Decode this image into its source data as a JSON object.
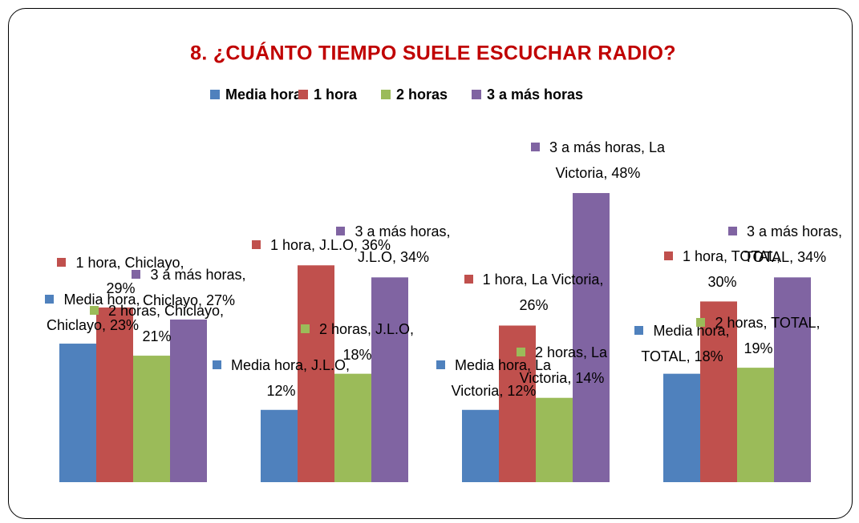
{
  "chart_data": {
    "type": "bar",
    "title": "8. ¿CUÁNTO TIEMPO SUELE ESCUCHAR RADIO?",
    "categories": [
      "Chiclayo",
      "J.L.O",
      "La Victoria",
      "TOTAL"
    ],
    "ylim": [
      0,
      50
    ],
    "legend": "top",
    "series": [
      {
        "name": "Media hora",
        "color": "#4f81bd",
        "values": [
          23,
          12,
          12,
          18
        ],
        "value_labels": [
          "Media hora, Chiclayo, 23%",
          "Media hora, J.L.O, 12%",
          "Media hora, La Victoria, 12%",
          "Media hora, TOTAL, 18%"
        ]
      },
      {
        "name": "1 hora",
        "color": "#c0504d",
        "values": [
          29,
          36,
          26,
          30
        ],
        "value_labels": [
          "1 hora, Chiclayo, 29%",
          "1 hora, J.L.O, 36%",
          "1 hora, La Victoria, 26%",
          "1 hora, TOTAL, 30%"
        ]
      },
      {
        "name": "2 horas",
        "color": "#9bbb59",
        "values": [
          21,
          18,
          14,
          19
        ],
        "value_labels": [
          "2 horas, Chiclayo, 21%",
          "2 horas, J.L.O, 18%",
          "2 horas, La Victoria, 14%",
          "2 horas, TOTAL, 19%"
        ]
      },
      {
        "name": "3 a más horas",
        "color": "#8064a2",
        "values": [
          27,
          34,
          48,
          34
        ],
        "value_labels": [
          "3 a más horas, Chiclayo, 27%",
          "3 a más horas, J.L.O, 34%",
          "3 a más horas, La Victoria, 48%",
          "3 a más horas, TOTAL, 34%"
        ]
      }
    ]
  }
}
